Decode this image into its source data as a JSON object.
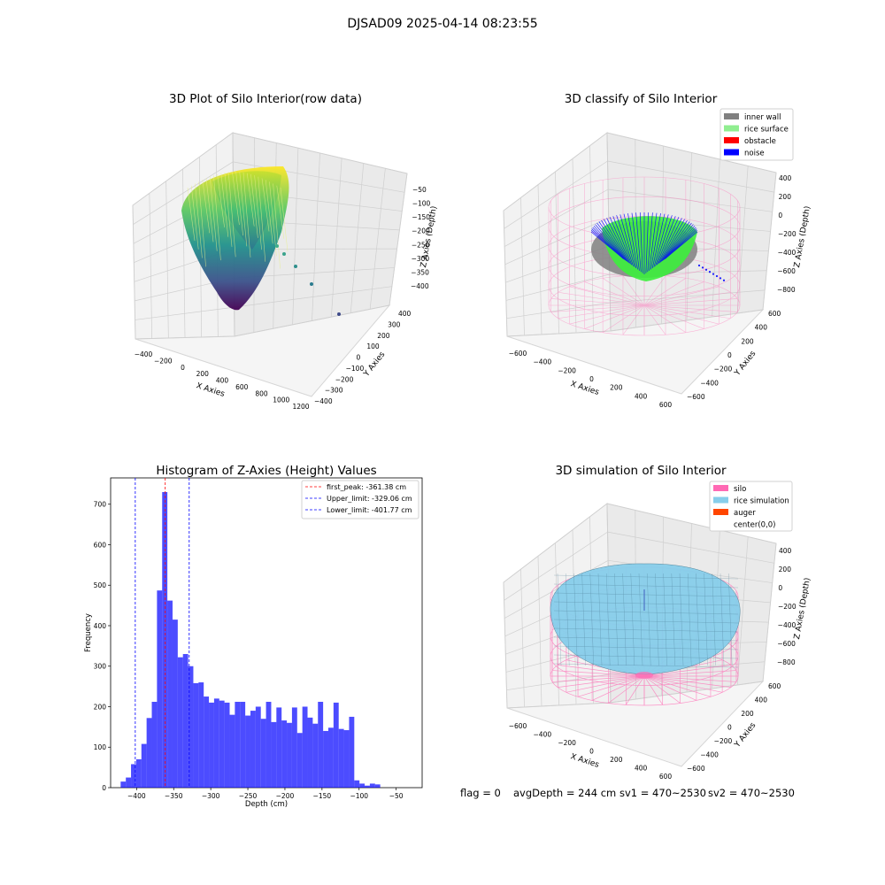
{
  "suptitle": "DJSAD09 2025-04-14 08:23:55",
  "panels": {
    "raw": {
      "title": "3D Plot of Silo Interior(row data)",
      "xlabel": "X Axies",
      "ylabel": "Y Axies",
      "zlabel": "Z Axies (Depth)",
      "x_ticks": [
        "−400",
        "−200",
        "0",
        "200",
        "400",
        "600",
        "800",
        "1000",
        "1200"
      ],
      "y_ticks": [
        "−400",
        "−300",
        "−200",
        "−100",
        "0",
        "100",
        "200",
        "300",
        "400"
      ],
      "z_ticks": [
        "−50",
        "−100",
        "−150",
        "−200",
        "−250",
        "−300",
        "−350",
        "−400"
      ]
    },
    "classify": {
      "title": "3D classify of Silo Interior",
      "xlabel": "X Axies",
      "ylabel": "Y Axies",
      "zlabel": "Z Axies (Depth)",
      "x_ticks": [
        "−600",
        "−400",
        "−200",
        "0",
        "200",
        "400",
        "600"
      ],
      "y_ticks": [
        "−600",
        "−400",
        "−200",
        "0",
        "200",
        "400",
        "600"
      ],
      "z_ticks": [
        "400",
        "200",
        "0",
        "−200",
        "−400",
        "−600",
        "−800"
      ],
      "legend": [
        {
          "label": "inner wall",
          "color": "#808080"
        },
        {
          "label": "rice surface",
          "color": "#90ee90"
        },
        {
          "label": "obstacle",
          "color": "#ff0000"
        },
        {
          "label": "noise",
          "color": "#0000ff"
        }
      ]
    },
    "simulation": {
      "title": "3D simulation of Silo Interior",
      "xlabel": "X Axies",
      "ylabel": "Y Axies",
      "zlabel": "Z Axies (Depth)",
      "x_ticks": [
        "−600",
        "−400",
        "−200",
        "0",
        "200",
        "400",
        "600"
      ],
      "y_ticks": [
        "−600",
        "−400",
        "−200",
        "0",
        "200",
        "400",
        "600"
      ],
      "z_ticks": [
        "400",
        "200",
        "0",
        "−200",
        "−400",
        "−600",
        "−800"
      ],
      "legend": [
        {
          "label": "silo",
          "color": "#ff69b4"
        },
        {
          "label": "rice simulation",
          "color": "#87ceeb"
        },
        {
          "label": "auger",
          "color": "#ff4500"
        },
        {
          "label": "center(0,0)",
          "color": "#ffffff"
        }
      ]
    }
  },
  "footer": {
    "flag": "flag = 0",
    "avgDepth": "avgDepth = 244 cm",
    "sv1": "sv1 = 470~2530",
    "sv2": "sv2 = 470~2530"
  },
  "chart_data": {
    "type": "bar",
    "title": "Histogram of Z-Axies (Height) Values",
    "xlabel": "Depth (cm)",
    "ylabel": "Frequency",
    "xlim": [
      -435,
      -15
    ],
    "ylim": [
      0,
      765
    ],
    "xticks": [
      -400,
      -350,
      -300,
      -250,
      -200,
      -150,
      -100,
      -50
    ],
    "xtick_labels": [
      "−400",
      "−350",
      "−300",
      "−250",
      "−200",
      "−150",
      "−100",
      "−50"
    ],
    "yticks": [
      0,
      100,
      200,
      300,
      400,
      500,
      600,
      700
    ],
    "bar_color": "#0000ff",
    "bin_edges_start": -421.5,
    "bin_width": 7.0,
    "values": [
      15,
      25,
      58,
      70,
      108,
      172,
      212,
      487,
      730,
      462,
      415,
      322,
      330,
      300,
      258,
      260,
      225,
      210,
      220,
      215,
      210,
      180,
      212,
      212,
      178,
      190,
      200,
      170,
      212,
      162,
      198,
      166,
      160,
      198,
      135,
      200,
      173,
      158,
      212,
      140,
      148,
      210,
      145,
      142,
      175,
      18,
      10,
      5,
      10,
      8
    ],
    "lines": [
      {
        "label": "first_peak: -361.38 cm",
        "value": -361.38,
        "color": "#ff0000"
      },
      {
        "label": "Upper_limit: -329.06 cm",
        "value": -329.06,
        "color": "#0000ff"
      },
      {
        "label": "Lower_limit: -401.77 cm",
        "value": -401.77,
        "color": "#0000ff"
      }
    ]
  }
}
